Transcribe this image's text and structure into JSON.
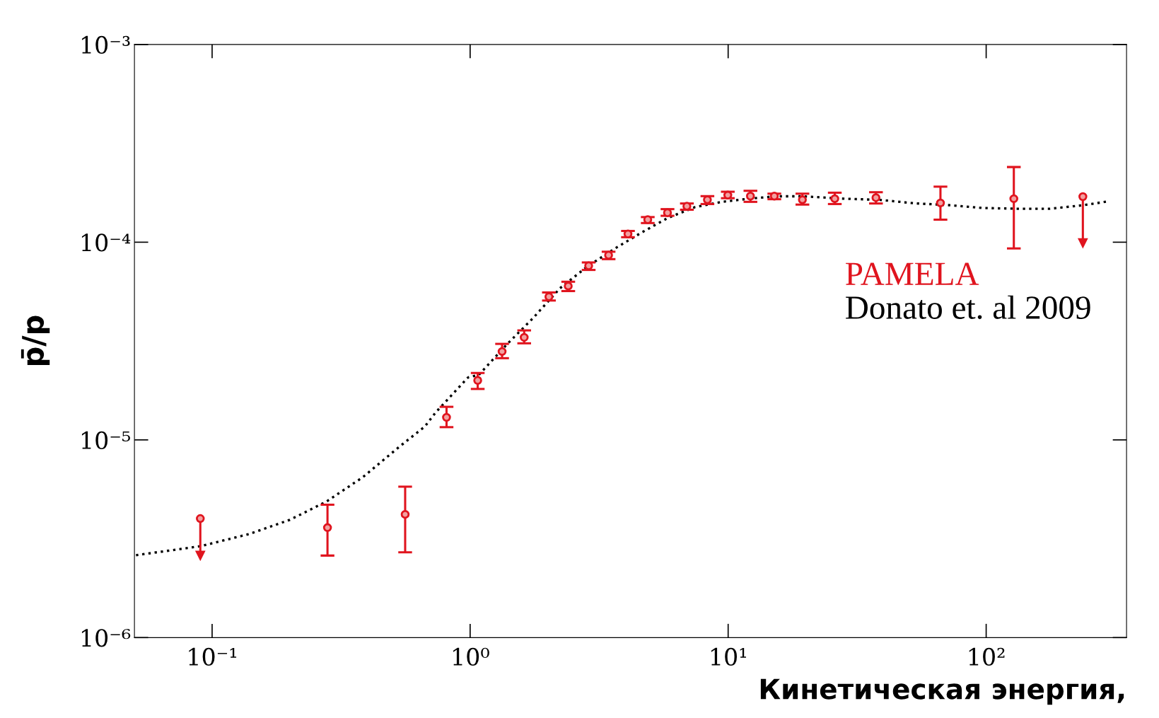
{
  "chart_data": {
    "type": "scatter",
    "xlabel": "Кинетическая энергия,",
    "ylabel": "p̄/p",
    "log": "xy",
    "xlim": [
      0.05,
      350
    ],
    "ylim": [
      1e-06,
      0.001
    ],
    "xticks": [
      {
        "value": 0.1,
        "label": "10⁻¹"
      },
      {
        "value": 1,
        "label": "10⁰"
      },
      {
        "value": 10,
        "label": "10¹"
      },
      {
        "value": 100,
        "label": "10²"
      }
    ],
    "yticks": [
      {
        "value": 1e-06,
        "label": "10⁻⁶"
      },
      {
        "value": 1e-05,
        "label": "10⁻⁵"
      },
      {
        "value": 0.0001,
        "label": "10⁻⁴"
      },
      {
        "value": 0.001,
        "label": "10⁻³"
      }
    ],
    "legend": "right",
    "grid": false,
    "series": [
      {
        "name": "PAMELA",
        "type": "scatter",
        "color": "#e0141e",
        "marker": "circle",
        "x": [
          0.09,
          0.28,
          0.56,
          0.81,
          1.07,
          1.33,
          1.62,
          2.02,
          2.4,
          2.88,
          3.44,
          4.09,
          4.88,
          5.82,
          6.92,
          8.31,
          9.97,
          12.2,
          15.1,
          19.4,
          25.9,
          37.4,
          66.5,
          128,
          237
        ],
        "values": [
          4e-06,
          3.6e-06,
          4.2e-06,
          1.3e-05,
          2e-05,
          2.8e-05,
          3.3e-05,
          5.3e-05,
          6e-05,
          7.6e-05,
          8.6e-05,
          0.00011,
          0.00013,
          0.000141,
          0.000152,
          0.000164,
          0.000173,
          0.000171,
          0.000171,
          0.000164,
          0.000166,
          0.000168,
          0.000158,
          0.000166,
          0.00017
        ],
        "errors": [
          [
            2.6e-06,
            4e-06
          ],
          [
            2.6e-06,
            4.7e-06
          ],
          [
            2.7e-06,
            5.8e-06
          ],
          [
            1.16e-05,
            1.47e-05
          ],
          [
            1.81e-05,
            2.18e-05
          ],
          [
            2.59e-05,
            3.06e-05
          ],
          [
            3.08e-05,
            3.58e-05
          ],
          [
            5.07e-05,
            5.57e-05
          ],
          [
            5.66e-05,
            6.31e-05
          ],
          [
            7.24e-05,
            7.9e-05
          ],
          [
            8.21e-05,
            8.95e-05
          ],
          [
            0.000106,
            0.000114
          ],
          [
            0.000125,
            0.000134
          ],
          [
            0.000136,
            0.000147
          ],
          [
            0.000146,
            0.000157
          ],
          [
            0.000156,
            0.000171
          ],
          [
            0.000167,
            0.00018
          ],
          [
            0.00016,
            0.000182
          ],
          [
            0.000165,
            0.000176
          ],
          [
            0.000155,
            0.000176
          ],
          [
            0.000156,
            0.000178
          ],
          [
            0.000157,
            0.000179
          ],
          [
            0.00013,
            0.000191
          ],
          [
            9.3e-05,
            0.00024
          ],
          [
            9.9e-05,
            0.00017
          ]
        ]
      },
      {
        "name": "Donato et. al 2009",
        "type": "line",
        "color": "#000000",
        "line_style": "dotted",
        "marker": "none",
        "x": [
          0.0507,
          0.0903,
          0.139,
          0.2,
          0.277,
          0.384,
          0.531,
          0.668,
          0.736,
          0.982,
          1.08,
          1.377,
          1.753,
          2.23,
          2.84,
          3.61,
          4.59,
          5.84,
          7.44,
          9.46,
          12.05,
          15.3,
          19.5,
          28.0,
          38.9,
          52.8,
          71.5,
          96.6,
          130.6,
          177,
          239,
          298
        ],
        "values": [
          2.61e-06,
          2.9e-06,
          3.34e-06,
          3.94e-06,
          4.87e-06,
          6.48e-06,
          9.22e-06,
          1.17e-05,
          1.38e-05,
          2.07e-05,
          2.13e-05,
          3.01e-05,
          4.13e-05,
          5.85e-05,
          7.52e-05,
          9.23e-05,
          0.0001114,
          0.0001327,
          0.0001505,
          0.00016,
          0.000166,
          0.0001707,
          0.0001707,
          0.000166,
          0.0001637,
          0.0001573,
          0.000154,
          0.000149,
          0.0001477,
          0.0001477,
          0.000154,
          0.000161
        ]
      }
    ]
  }
}
